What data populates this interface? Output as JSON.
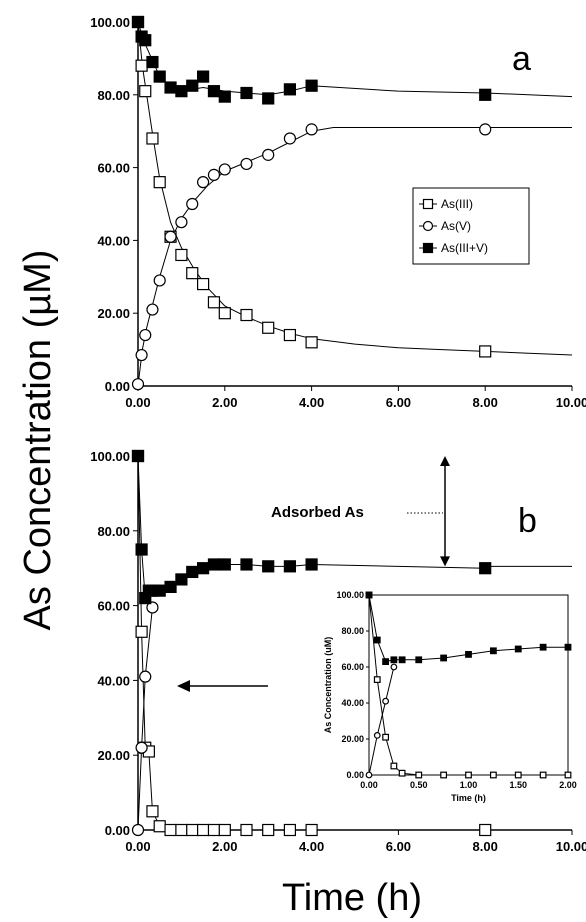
{
  "figure": {
    "ylabel": "As Concentration (µM)",
    "xlabel": "Time (h)"
  },
  "colors": {
    "line": "#000000",
    "fill_open": "#ffffff",
    "fill_solid": "#000000"
  },
  "chart_data": [
    {
      "type": "line",
      "panel_label": "a",
      "xlim": [
        0,
        10
      ],
      "ylim": [
        0,
        100
      ],
      "x_ticks": [
        "0.00",
        "2.00",
        "4.00",
        "6.00",
        "8.00",
        "10.00"
      ],
      "y_ticks": [
        "0.00",
        "20.00",
        "40.00",
        "60.00",
        "80.00",
        "100.00"
      ],
      "legend": {
        "placement": "center-right",
        "entries": [
          "As(III)",
          "As(V)",
          "As(III+V)"
        ]
      },
      "series": [
        {
          "name": "As(III)",
          "marker": "open-square",
          "x": [
            0,
            0.083,
            0.167,
            0.333,
            0.5,
            0.75,
            1.0,
            1.25,
            1.5,
            1.75,
            2.0,
            2.5,
            3.0,
            3.5,
            4.0,
            8.0
          ],
          "y": [
            100,
            88,
            81,
            68,
            56,
            41,
            36,
            31,
            28,
            23,
            20,
            19.5,
            16,
            14,
            12,
            9.5
          ]
        },
        {
          "name": "As(V)",
          "marker": "open-circle",
          "x": [
            0,
            0.083,
            0.167,
            0.333,
            0.5,
            0.75,
            1.0,
            1.25,
            1.5,
            1.75,
            2.0,
            2.5,
            3.0,
            3.5,
            4.0,
            8.0
          ],
          "y": [
            0.5,
            8.5,
            14,
            21,
            29,
            41,
            45,
            50,
            56,
            58,
            59.5,
            61,
            63.5,
            68,
            70.5,
            70.5
          ]
        },
        {
          "name": "As(III+V)",
          "marker": "filled-square",
          "x": [
            0,
            0.083,
            0.167,
            0.333,
            0.5,
            0.75,
            1.0,
            1.25,
            1.5,
            1.75,
            2.0,
            2.5,
            3.0,
            3.5,
            4.0,
            8.0
          ],
          "y": [
            100,
            96,
            95,
            89,
            85,
            82,
            81,
            82.5,
            85,
            81,
            79.5,
            80.5,
            79,
            81.5,
            82.5,
            80
          ]
        }
      ],
      "fit_curves": [
        {
          "series": "As(III)",
          "x": [
            0,
            0.1,
            0.2,
            0.35,
            0.5,
            0.75,
            1.0,
            1.3,
            1.6,
            2.0,
            2.5,
            3.0,
            3.5,
            4.0,
            5.0,
            6.0,
            7.0,
            8.0,
            9.0,
            10.0
          ],
          "y": [
            100,
            88,
            80,
            68,
            57,
            45,
            38,
            32,
            27,
            22,
            19,
            16.5,
            14.5,
            13,
            11.5,
            10.5,
            10,
            9.5,
            9,
            8.5
          ]
        },
        {
          "series": "As(V)",
          "x": [
            0,
            0.1,
            0.2,
            0.35,
            0.5,
            0.75,
            1.0,
            1.3,
            1.6,
            2.0,
            2.5,
            3.0,
            3.5,
            4.0,
            4.5,
            6.0,
            8.0,
            10.0
          ],
          "y": [
            0,
            10,
            16,
            23,
            30,
            40,
            46,
            51,
            55,
            59,
            61.5,
            64,
            67,
            70,
            71,
            71,
            71,
            71
          ]
        },
        {
          "series": "As(III+V)",
          "x": [
            0,
            0.1,
            0.2,
            0.35,
            0.5,
            0.75,
            1.0,
            1.5,
            2.0,
            2.5,
            3.0,
            3.5,
            4.0,
            6.0,
            8.0,
            10.0
          ],
          "y": [
            100,
            96,
            93,
            89,
            85,
            82,
            81,
            82,
            81,
            80.5,
            80,
            81,
            82.5,
            81,
            80.5,
            79.5
          ]
        }
      ]
    },
    {
      "type": "line",
      "panel_label": "b",
      "xlim": [
        0,
        10
      ],
      "ylim": [
        0,
        100
      ],
      "x_ticks": [
        "0.00",
        "2.00",
        "4.00",
        "6.00",
        "8.00",
        "10.00"
      ],
      "y_ticks": [
        "0.00",
        "20.00",
        "40.00",
        "60.00",
        "80.00",
        "100.00"
      ],
      "annotation": "Adsorbed As",
      "series": [
        {
          "name": "As(III)",
          "marker": "open-square",
          "x": [
            0,
            0.083,
            0.167,
            0.25,
            0.333,
            0.5,
            0.75,
            1.0,
            1.25,
            1.5,
            1.75,
            2.0,
            2.5,
            3.0,
            3.5,
            4.0,
            8.0
          ],
          "y": [
            100,
            53,
            22,
            21,
            5,
            1,
            0,
            0,
            0,
            0,
            0,
            0,
            0,
            0,
            0,
            0,
            0
          ]
        },
        {
          "name": "As(V)",
          "marker": "open-circle",
          "x": [
            0,
            0.083,
            0.167,
            0.333
          ],
          "y": [
            0,
            22,
            41,
            59.5
          ]
        },
        {
          "name": "As(III+V)",
          "marker": "filled-square",
          "x": [
            0,
            0.083,
            0.167,
            0.25,
            0.333,
            0.5,
            0.75,
            1.0,
            1.25,
            1.5,
            1.75,
            2.0,
            2.5,
            3.0,
            3.5,
            4.0,
            8.0
          ],
          "y": [
            100,
            75,
            62,
            64,
            64,
            64,
            65,
            67,
            69,
            70,
            71,
            71,
            71,
            70.5,
            70.5,
            71,
            70
          ]
        }
      ],
      "reference_line_y": 70.5
    },
    {
      "type": "line",
      "panel_label": "inset",
      "xlim": [
        0,
        2
      ],
      "ylim": [
        0,
        100
      ],
      "xlabel": "Time (h)",
      "ylabel": "As Concentration (uM)",
      "x_ticks": [
        "0.00",
        "0.50",
        "1.00",
        "1.50",
        "2.00"
      ],
      "y_ticks": [
        "0.00",
        "20.00",
        "40.00",
        "60.00",
        "80.00",
        "100.00"
      ],
      "series": [
        {
          "name": "As(III)",
          "marker": "open-square",
          "x": [
            0,
            0.083,
            0.167,
            0.25,
            0.333,
            0.5,
            0.75,
            1.0,
            1.25,
            1.5,
            1.75,
            2.0
          ],
          "y": [
            100,
            53,
            21,
            5,
            1,
            0,
            0,
            0,
            0,
            0,
            0,
            0
          ]
        },
        {
          "name": "As(V)",
          "marker": "open-circle",
          "x": [
            0,
            0.083,
            0.167,
            0.25
          ],
          "y": [
            0,
            22,
            41,
            60
          ]
        },
        {
          "name": "As(III+V)",
          "marker": "filled-square",
          "x": [
            0,
            0.083,
            0.167,
            0.25,
            0.333,
            0.5,
            0.75,
            1.0,
            1.25,
            1.5,
            1.75,
            2.0
          ],
          "y": [
            100,
            75,
            63,
            64,
            64,
            64,
            65,
            67,
            69,
            70,
            71,
            71
          ]
        }
      ]
    }
  ]
}
